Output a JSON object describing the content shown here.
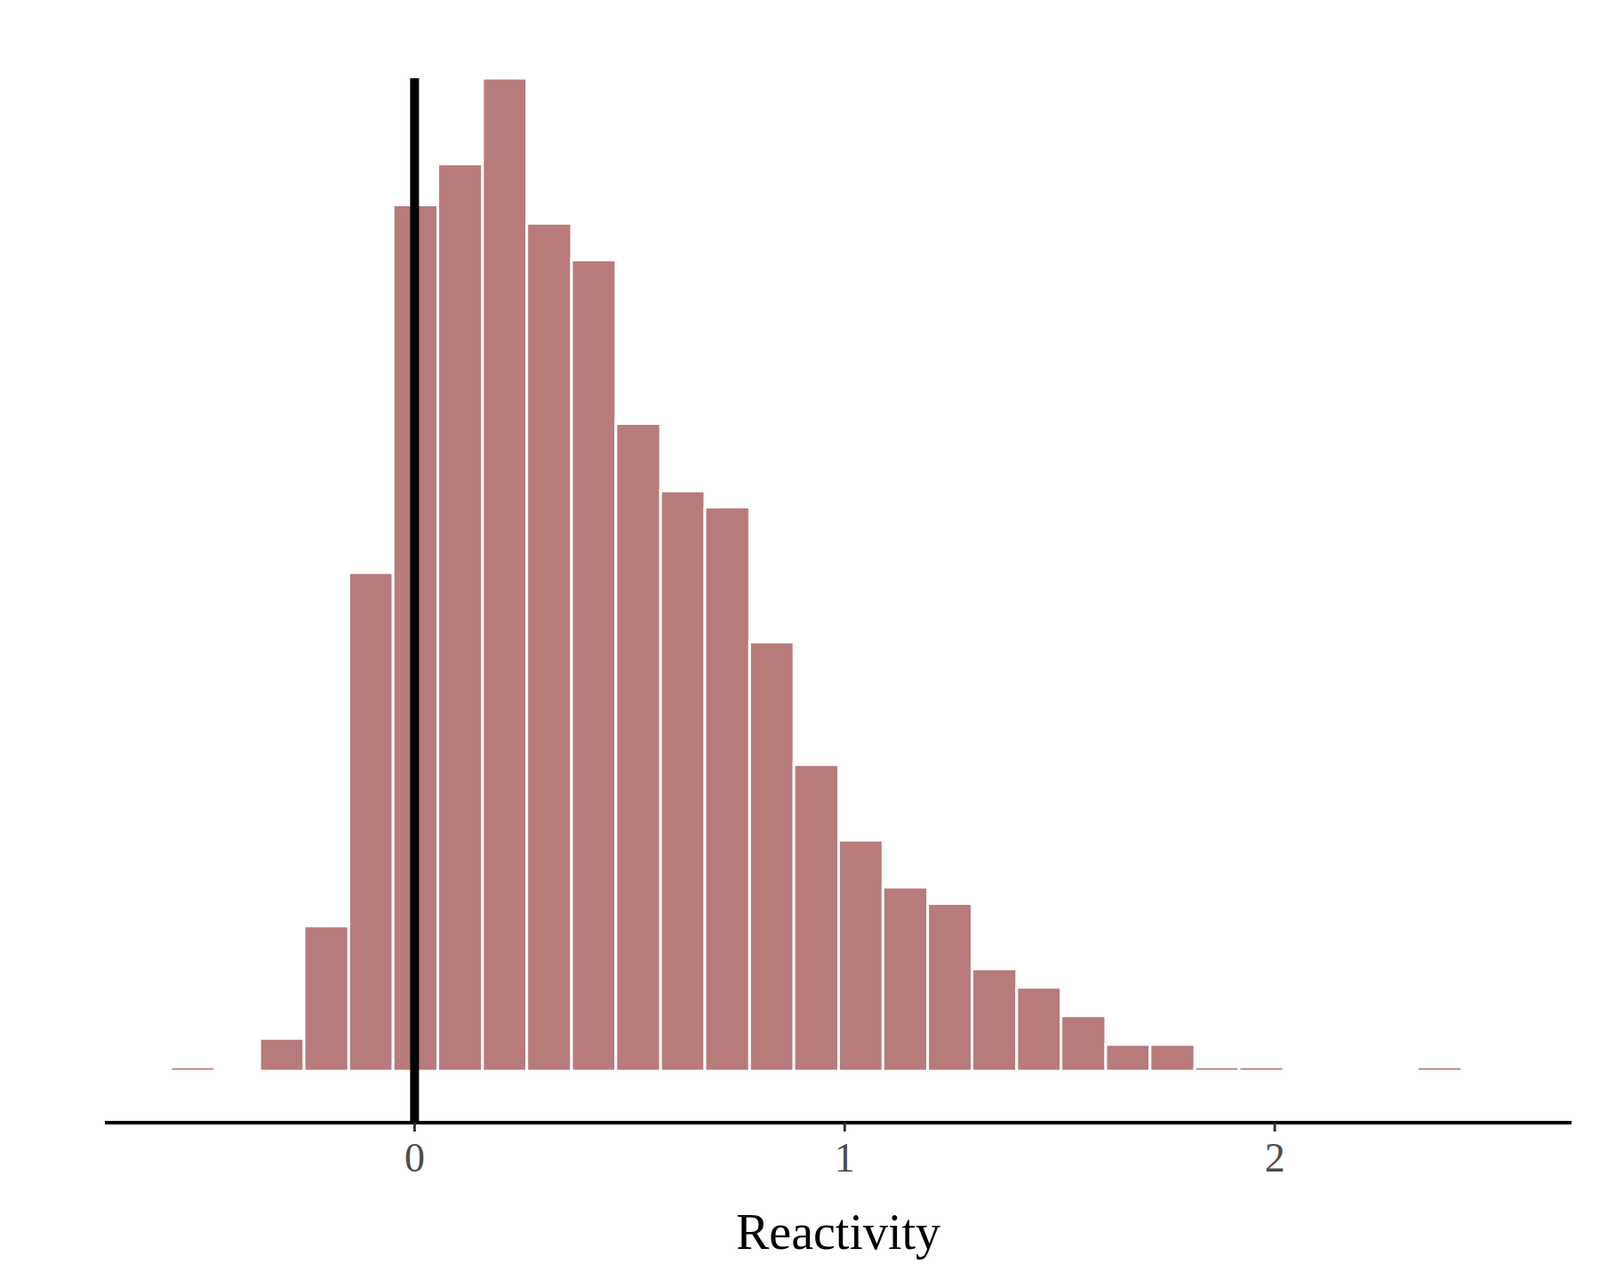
{
  "chart_data": {
    "type": "histogram",
    "x_label": "Reactivity",
    "bins": [
      -0.567,
      -0.464,
      -0.36,
      -0.257,
      -0.153,
      -0.05,
      0.054,
      0.158,
      0.261,
      0.365,
      0.468,
      0.572,
      0.675,
      0.779,
      0.882,
      0.986,
      1.089,
      1.193,
      1.296,
      1.4,
      1.503,
      1.607,
      1.71,
      1.814,
      1.917,
      2.021,
      2.124,
      2.228,
      2.331,
      2.435
    ],
    "counts": [
      2,
      0,
      16,
      71,
      244,
      424,
      444,
      486,
      415,
      397,
      317,
      284,
      276,
      210,
      150,
      113,
      90,
      82,
      50,
      41,
      27,
      13,
      13,
      2,
      2,
      1,
      0,
      0,
      2
    ],
    "color": "#b77b7b",
    "xlim": [
      -0.72,
      2.69
    ],
    "xticks": [
      0,
      1,
      2
    ],
    "tick_labels": "x",
    "reference_lines": [
      {
        "x": 0
      }
    ]
  }
}
